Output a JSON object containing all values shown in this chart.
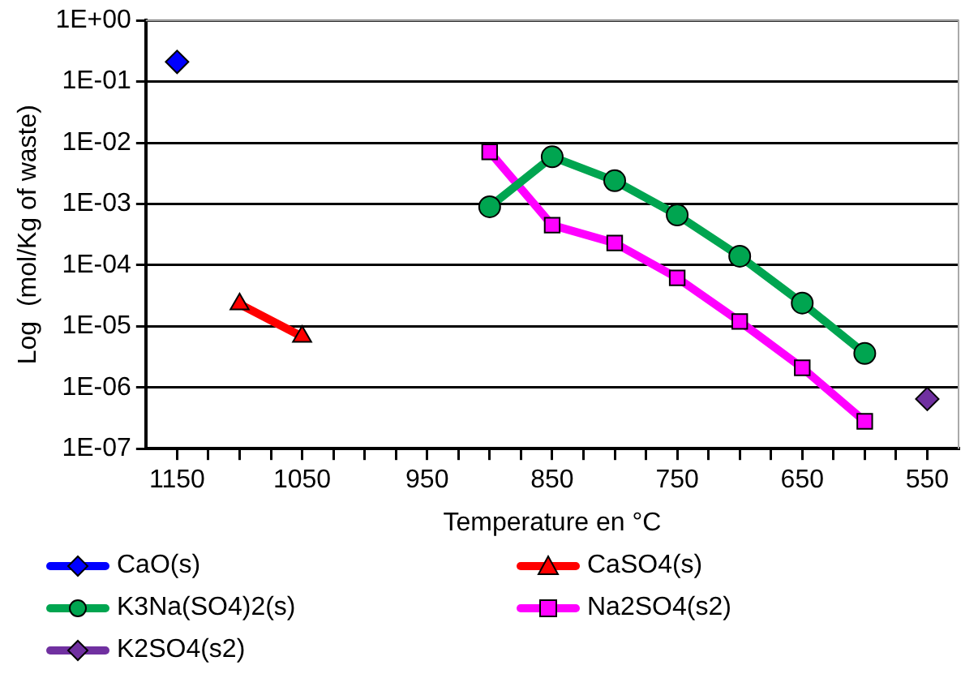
{
  "chart_data": {
    "type": "line",
    "xlabel": "Temperature en °C",
    "ylabel": "Log  (mol/Kg of waste)",
    "log": "y",
    "grid": "y",
    "legend": "bottom",
    "xlim": [
      1175,
      525
    ],
    "xticks": [
      1150,
      {
        "value": 1125,
        "label": null
      },
      {
        "value": 1100,
        "label": null
      },
      {
        "value": 1075,
        "label": null
      },
      1050,
      {
        "value": 1025,
        "label": null
      },
      {
        "value": 1000,
        "label": null
      },
      {
        "value": 975,
        "label": null
      },
      950,
      {
        "value": 925,
        "label": null
      },
      {
        "value": 900,
        "label": null
      },
      {
        "value": 875,
        "label": null
      },
      850,
      {
        "value": 825,
        "label": null
      },
      {
        "value": 800,
        "label": null
      },
      {
        "value": 775,
        "label": null
      },
      750,
      {
        "value": 725,
        "label": null
      },
      {
        "value": 700,
        "label": null
      },
      {
        "value": 675,
        "label": null
      },
      650,
      {
        "value": 625,
        "label": null
      },
      {
        "value": 600,
        "label": null
      },
      {
        "value": 575,
        "label": null
      },
      550
    ],
    "ylim": [
      1e-07,
      1
    ],
    "yticks": [
      {
        "value": 1e-07,
        "label": "1E-07"
      },
      {
        "value": 1e-06,
        "label": "1E-06"
      },
      {
        "value": 1e-05,
        "label": "1E-05"
      },
      {
        "value": 0.0001,
        "label": "1E-04"
      },
      {
        "value": 0.001,
        "label": "1E-03"
      },
      {
        "value": 0.01,
        "label": "1E-02"
      },
      {
        "value": 0.1,
        "label": "1E-01"
      },
      {
        "value": 1,
        "label": "1E+00"
      }
    ],
    "series": [
      {
        "name": "CaO(s)",
        "color": "#0000ff",
        "marker": "diamond",
        "x": [
          1150
        ],
        "values": [
          0.21
        ]
      },
      {
        "name": "CaSO4(s)",
        "color": "#ff0000",
        "marker": "triangle",
        "x": [
          1100,
          1050
        ],
        "values": [
          2.3e-05,
          6.8e-06
        ]
      },
      {
        "name": "K3Na(SO4)2(s)",
        "color": "#00a550",
        "marker": "circle",
        "x": [
          900,
          850,
          800,
          750,
          700,
          650,
          600
        ],
        "values": [
          0.0009,
          0.0059,
          0.0024,
          0.00066,
          0.00014,
          2.4e-05,
          3.6e-06
        ]
      },
      {
        "name": "Na2SO4(s2)",
        "color": "#ff00ff",
        "marker": "square",
        "x": [
          900,
          850,
          800,
          750,
          700,
          650,
          600
        ],
        "values": [
          0.0071,
          0.00045,
          0.00023,
          6.2e-05,
          1.2e-05,
          2.1e-06,
          2.8e-07
        ]
      },
      {
        "name": "K2SO4(s2)",
        "color": "#7030a0",
        "marker": "diamond",
        "x": [
          550
        ],
        "values": [
          6.5e-07
        ]
      }
    ]
  }
}
